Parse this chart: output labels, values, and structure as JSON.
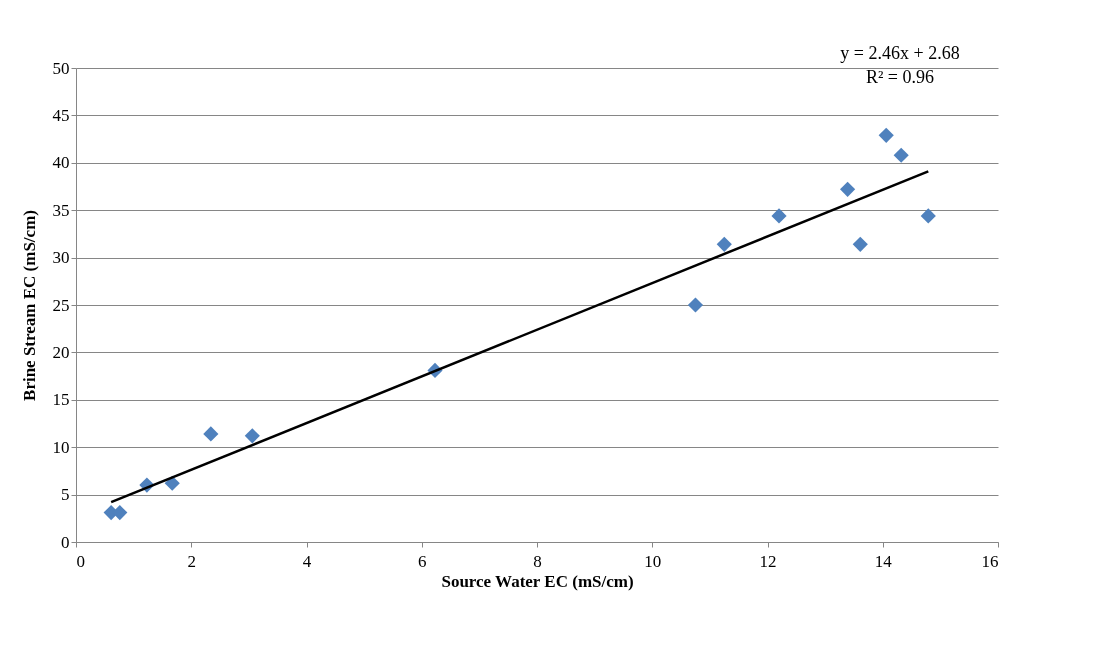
{
  "chart_data": {
    "type": "scatter",
    "xlabel": "Source Water EC (mS/cm)",
    "ylabel": "Brine Stream EC (mS/cm)",
    "xlim": [
      0,
      16
    ],
    "xticks": [
      0,
      2,
      4,
      6,
      8,
      10,
      12,
      14,
      16
    ],
    "ylim": [
      0,
      50
    ],
    "yticks": [
      0,
      5,
      10,
      15,
      20,
      25,
      30,
      35,
      40,
      45,
      50
    ],
    "grid": "y",
    "marker": "diamond",
    "annotations": [
      "y = 2.46x + 2.68",
      "R² = 0.96"
    ],
    "series": [
      {
        "color": "#4f81bd",
        "x": [
          0.61,
          0.76,
          1.23,
          1.67,
          2.34,
          3.06,
          6.23,
          10.75,
          11.25,
          12.2,
          13.39,
          13.61,
          14.06,
          14.32,
          14.79
        ],
        "values": [
          3.1,
          3.1,
          6.0,
          6.2,
          11.4,
          11.2,
          18.1,
          25.0,
          31.4,
          34.4,
          37.2,
          31.4,
          42.9,
          40.8,
          34.4
        ]
      },
      {
        "type": "line",
        "marker": "none",
        "color": "#000000",
        "x": [
          0.61,
          14.79
        ],
        "values": [
          4.2,
          39.1
        ]
      }
    ]
  }
}
